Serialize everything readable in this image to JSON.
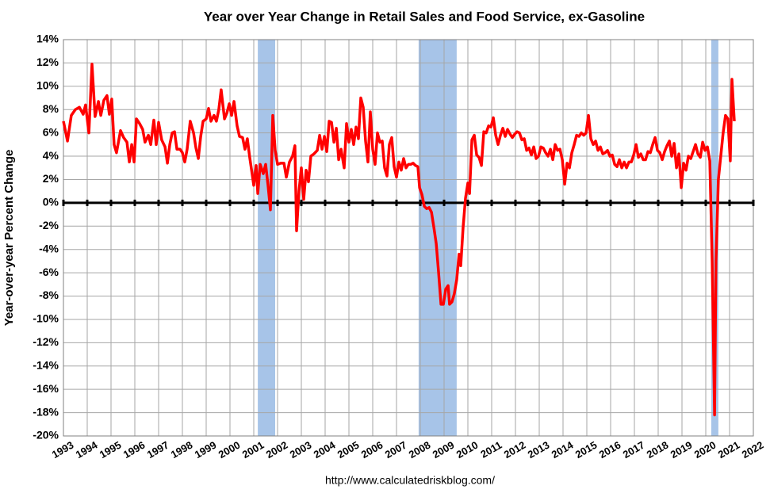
{
  "chart_data": {
    "type": "line",
    "title": "Year over Year Change in Retail Sales and Food Service, ex-Gasoline",
    "y_label": "Year-over-year Percent Change",
    "source": "http://www.calculatedriskblog.com/",
    "color": "#ff0000",
    "recession_color": "#a7c4e8",
    "grid": true,
    "recessions": [
      [
        2001.17,
        2001.9
      ],
      [
        2007.93,
        2009.53
      ],
      [
        2020.23,
        2020.53
      ]
    ],
    "xlim": [
      1993,
      2022
    ],
    "xticks": [
      1993,
      1994,
      1995,
      1996,
      1997,
      1998,
      1999,
      2000,
      2001,
      2002,
      2003,
      2004,
      2005,
      2006,
      2007,
      2008,
      2009,
      2010,
      2011,
      2012,
      2013,
      2014,
      2015,
      2016,
      2017,
      2018,
      2019,
      2020,
      2021,
      2022
    ],
    "ylim": [
      -20,
      14
    ],
    "yticks": [
      {
        "value": -20,
        "label": "-20%"
      },
      {
        "value": -18,
        "label": "-18%"
      },
      {
        "value": -16,
        "label": "-16%"
      },
      {
        "value": -14,
        "label": "-14%"
      },
      {
        "value": -12,
        "label": "-12%"
      },
      {
        "value": -10,
        "label": "-10%"
      },
      {
        "value": -8,
        "label": "-8%"
      },
      {
        "value": -6,
        "label": "-6%"
      },
      {
        "value": -4,
        "label": "-4%"
      },
      {
        "value": -2,
        "label": "-2%"
      },
      {
        "value": 0,
        "label": "0%"
      },
      {
        "value": 2,
        "label": "2%"
      },
      {
        "value": 4,
        "label": "4%"
      },
      {
        "value": 6,
        "label": "6%"
      },
      {
        "value": 8,
        "label": "8%"
      },
      {
        "value": 10,
        "label": "10%"
      },
      {
        "value": 12,
        "label": "12%"
      },
      {
        "value": 14,
        "label": "14%"
      }
    ],
    "x": [
      1993.0,
      1993.17,
      1993.33,
      1993.5,
      1993.67,
      1993.83,
      1993.93,
      1994.07,
      1994.2,
      1994.33,
      1994.47,
      1994.57,
      1994.7,
      1994.83,
      1994.93,
      1995.03,
      1995.13,
      1995.23,
      1995.4,
      1995.53,
      1995.67,
      1995.77,
      1995.87,
      1995.97,
      1996.07,
      1996.2,
      1996.33,
      1996.43,
      1996.57,
      1996.67,
      1996.8,
      1996.9,
      1997.0,
      1997.13,
      1997.27,
      1997.37,
      1997.47,
      1997.57,
      1997.67,
      1997.77,
      1997.9,
      1998.0,
      1998.1,
      1998.2,
      1998.33,
      1998.47,
      1998.57,
      1998.67,
      1998.77,
      1998.87,
      1999.0,
      1999.1,
      1999.2,
      1999.33,
      1999.43,
      1999.53,
      1999.63,
      1999.77,
      1999.87,
      1999.97,
      2000.07,
      2000.17,
      2000.3,
      2000.4,
      2000.53,
      2000.63,
      2000.73,
      2000.83,
      2000.93,
      2001.0,
      2001.1,
      2001.17,
      2001.27,
      2001.4,
      2001.5,
      2001.6,
      2001.7,
      2001.8,
      2001.9,
      2002.0,
      2002.13,
      2002.27,
      2002.37,
      2002.5,
      2002.63,
      2002.73,
      2002.8,
      2002.9,
      2003.0,
      2003.1,
      2003.2,
      2003.3,
      2003.4,
      2003.53,
      2003.67,
      2003.77,
      2003.87,
      2003.97,
      2004.07,
      2004.17,
      2004.27,
      2004.37,
      2004.47,
      2004.57,
      2004.67,
      2004.8,
      2004.9,
      2005.0,
      2005.1,
      2005.2,
      2005.3,
      2005.4,
      2005.5,
      2005.6,
      2005.7,
      2005.8,
      2005.9,
      2006.0,
      2006.1,
      2006.2,
      2006.3,
      2006.4,
      2006.5,
      2006.6,
      2006.7,
      2006.8,
      2006.9,
      2007.0,
      2007.1,
      2007.2,
      2007.3,
      2007.4,
      2007.5,
      2007.6,
      2007.7,
      2007.8,
      2007.9,
      2007.97,
      2008.07,
      2008.17,
      2008.27,
      2008.37,
      2008.47,
      2008.57,
      2008.67,
      2008.77,
      2008.87,
      2008.97,
      2009.07,
      2009.17,
      2009.23,
      2009.33,
      2009.43,
      2009.53,
      2009.63,
      2009.7,
      2009.8,
      2009.9,
      2010.0,
      2010.07,
      2010.17,
      2010.27,
      2010.37,
      2010.47,
      2010.57,
      2010.67,
      2010.77,
      2010.87,
      2010.97,
      2011.07,
      2011.17,
      2011.27,
      2011.37,
      2011.47,
      2011.57,
      2011.67,
      2011.77,
      2011.87,
      2011.97,
      2012.07,
      2012.17,
      2012.27,
      2012.37,
      2012.47,
      2012.57,
      2012.67,
      2012.77,
      2012.87,
      2012.97,
      2013.07,
      2013.17,
      2013.27,
      2013.37,
      2013.47,
      2013.57,
      2013.67,
      2013.77,
      2013.87,
      2013.97,
      2014.07,
      2014.17,
      2014.27,
      2014.37,
      2014.47,
      2014.57,
      2014.67,
      2014.77,
      2014.87,
      2014.97,
      2015.07,
      2015.17,
      2015.27,
      2015.37,
      2015.47,
      2015.57,
      2015.67,
      2015.77,
      2015.87,
      2015.97,
      2016.07,
      2016.17,
      2016.27,
      2016.37,
      2016.47,
      2016.57,
      2016.67,
      2016.77,
      2016.87,
      2016.97,
      2017.07,
      2017.17,
      2017.27,
      2017.37,
      2017.47,
      2017.57,
      2017.67,
      2017.77,
      2017.87,
      2017.97,
      2018.07,
      2018.17,
      2018.27,
      2018.37,
      2018.47,
      2018.57,
      2018.67,
      2018.77,
      2018.87,
      2018.97,
      2019.07,
      2019.17,
      2019.27,
      2019.37,
      2019.47,
      2019.57,
      2019.67,
      2019.77,
      2019.87,
      2019.97,
      2020.07,
      2020.17,
      2020.27,
      2020.37,
      2020.43,
      2020.53,
      2020.63,
      2020.73,
      2020.83,
      2020.93,
      2021.03,
      2021.1,
      2021.2
    ],
    "values": [
      7.0,
      5.3,
      7.5,
      8.0,
      8.2,
      7.6,
      8.4,
      6.0,
      11.9,
      7.4,
      8.7,
      7.5,
      8.8,
      9.2,
      7.6,
      8.9,
      5.0,
      4.3,
      6.2,
      5.6,
      5.2,
      3.5,
      5.0,
      3.5,
      7.2,
      6.8,
      6.3,
      5.2,
      5.8,
      5.0,
      7.1,
      5.0,
      6.9,
      5.4,
      4.8,
      3.4,
      5.0,
      6.0,
      6.1,
      4.6,
      4.6,
      4.3,
      3.5,
      4.6,
      7.0,
      6.0,
      4.7,
      3.8,
      5.7,
      7.0,
      7.2,
      8.1,
      7.0,
      7.5,
      7.0,
      8.0,
      9.7,
      7.2,
      7.7,
      8.5,
      7.5,
      8.7,
      6.6,
      5.7,
      5.6,
      4.6,
      5.5,
      3.9,
      2.5,
      1.5,
      3.2,
      0.8,
      3.3,
      2.5,
      3.3,
      1.5,
      -0.6,
      7.5,
      4.5,
      3.3,
      3.4,
      3.4,
      2.2,
      3.5,
      4.0,
      4.9,
      -2.4,
      1.0,
      3.0,
      0.3,
      2.8,
      1.8,
      4.0,
      4.2,
      4.5,
      5.8,
      4.6,
      5.7,
      4.4,
      7.0,
      6.9,
      5.2,
      6.4,
      3.7,
      4.6,
      3.0,
      6.8,
      5.2,
      6.3,
      5.0,
      6.5,
      5.5,
      9.0,
      8.2,
      5.3,
      3.5,
      7.8,
      4.6,
      3.3,
      6.0,
      5.2,
      5.3,
      3.0,
      2.3,
      5.0,
      5.6,
      3.1,
      2.2,
      3.5,
      2.8,
      3.8,
      3.0,
      3.3,
      3.3,
      3.4,
      3.2,
      3.1,
      1.3,
      0.7,
      -0.3,
      -0.5,
      -0.4,
      -0.8,
      -2.1,
      -3.5,
      -6.0,
      -8.7,
      -8.7,
      -7.4,
      -7.1,
      -8.7,
      -8.5,
      -7.8,
      -6.6,
      -4.4,
      -5.4,
      -2.1,
      0.4,
      1.7,
      0.8,
      5.4,
      5.8,
      4.1,
      3.9,
      3.2,
      6.1,
      6.0,
      6.6,
      6.5,
      7.3,
      5.8,
      5.0,
      5.8,
      6.4,
      5.7,
      6.3,
      5.9,
      5.6,
      5.9,
      6.1,
      6.0,
      5.4,
      5.5,
      4.5,
      4.7,
      4.1,
      4.8,
      3.8,
      4.0,
      4.8,
      4.7,
      4.3,
      4.0,
      4.6,
      3.7,
      5.0,
      4.5,
      4.6,
      3.7,
      1.6,
      3.4,
      3.0,
      4.3,
      5.0,
      5.8,
      5.7,
      6.0,
      5.8,
      6.0,
      7.5,
      5.5,
      5.0,
      5.3,
      4.5,
      4.8,
      4.2,
      4.3,
      4.5,
      4.0,
      4.1,
      3.3,
      3.1,
      3.7,
      3.0,
      3.5,
      3.0,
      3.5,
      3.5,
      4.1,
      5.0,
      3.9,
      4.2,
      3.7,
      3.7,
      4.4,
      4.3,
      5.0,
      5.6,
      4.5,
      4.3,
      3.7,
      4.4,
      4.9,
      5.3,
      4.0,
      5.1,
      3.0,
      4.2,
      1.3,
      3.4,
      2.8,
      4.0,
      3.8,
      4.4,
      5.0,
      4.2,
      3.9,
      5.2,
      4.5,
      4.8,
      3.6,
      -5.0,
      -18.2,
      -5.0,
      2.0,
      4.0,
      6.0,
      7.5,
      7.2,
      3.6,
      10.6,
      7.0
    ]
  }
}
